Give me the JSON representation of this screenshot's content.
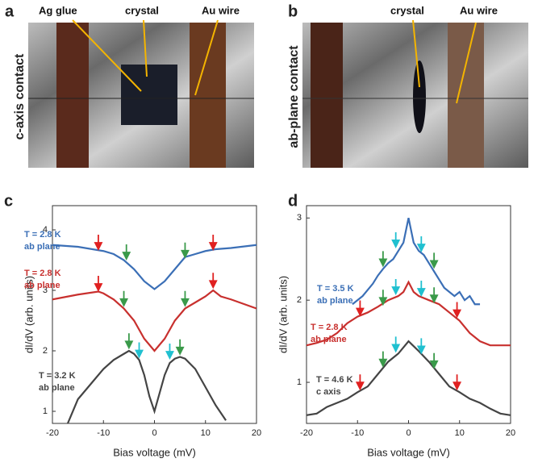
{
  "photos": [
    {
      "label": "a",
      "side": "c-axis contact",
      "callouts": [
        "Ag glue",
        "crystal",
        "Au wire"
      ]
    },
    {
      "label": "b",
      "side": "ab-plane contact",
      "callouts": [
        "crystal",
        "Au wire"
      ]
    }
  ],
  "chart_data": [
    {
      "type": "line",
      "label": "c",
      "xlabel": "Bias voltage (mV)",
      "ylabel": "dI/dV (arb. units)",
      "xlim": [
        -20,
        20
      ],
      "xticks": [
        -20,
        -10,
        0,
        10,
        20
      ],
      "ylim": [
        0.8,
        4.4
      ],
      "yticks": [
        1,
        2,
        3,
        4
      ],
      "series": [
        {
          "name": "T = 2.8 K",
          "note": "ab plane",
          "color": "#3b6fb6",
          "x": [
            -20,
            -15,
            -10,
            -8,
            -6,
            -4,
            -2,
            0,
            2,
            4,
            6,
            8,
            10,
            12,
            15,
            20
          ],
          "values": [
            3.75,
            3.72,
            3.65,
            3.6,
            3.5,
            3.35,
            3.15,
            3.02,
            3.15,
            3.35,
            3.55,
            3.6,
            3.65,
            3.68,
            3.7,
            3.75
          ]
        },
        {
          "name": "T = 2.8 K",
          "note": "ab plane",
          "color": "#c8302e",
          "x": [
            -20,
            -15,
            -11,
            -10,
            -8,
            -6,
            -4,
            -2,
            0,
            2,
            4,
            6,
            8,
            10,
            11.5,
            13,
            15,
            20
          ],
          "values": [
            2.85,
            2.93,
            2.98,
            2.95,
            2.85,
            2.7,
            2.5,
            2.2,
            2.0,
            2.2,
            2.5,
            2.7,
            2.8,
            2.9,
            3.0,
            2.9,
            2.85,
            2.7
          ]
        },
        {
          "name": "T = 3.2 K",
          "note": "ab plane",
          "color": "#444444",
          "x": [
            -17,
            -15,
            -12,
            -10,
            -8,
            -6,
            -5,
            -4,
            -3,
            -2,
            -1,
            0,
            1,
            2,
            3,
            4,
            5,
            6,
            8,
            10,
            12,
            14
          ],
          "values": [
            0.8,
            1.2,
            1.5,
            1.7,
            1.85,
            1.95,
            2.0,
            1.95,
            1.85,
            1.6,
            1.25,
            1.0,
            1.3,
            1.6,
            1.8,
            1.87,
            1.9,
            1.87,
            1.7,
            1.4,
            1.1,
            0.85
          ]
        }
      ],
      "arrows": [
        {
          "x": -11,
          "y": 3.68,
          "color": "#e02020"
        },
        {
          "x": -5.5,
          "y": 3.52,
          "color": "#3a9a4a"
        },
        {
          "x": 6,
          "y": 3.55,
          "color": "#3a9a4a"
        },
        {
          "x": 11.5,
          "y": 3.68,
          "color": "#e02020"
        },
        {
          "x": -11,
          "y": 3.0,
          "color": "#e02020"
        },
        {
          "x": -6,
          "y": 2.75,
          "color": "#3a9a4a"
        },
        {
          "x": 6,
          "y": 2.75,
          "color": "#3a9a4a"
        },
        {
          "x": 11.5,
          "y": 3.05,
          "color": "#e02020"
        },
        {
          "x": -5,
          "y": 2.05,
          "color": "#3a9a4a"
        },
        {
          "x": -3,
          "y": 1.9,
          "color": "#20c0d0"
        },
        {
          "x": 3,
          "y": 1.88,
          "color": "#20c0d0"
        },
        {
          "x": 5,
          "y": 1.95,
          "color": "#3a9a4a"
        }
      ]
    },
    {
      "type": "line",
      "label": "d",
      "xlabel": "Bias voltage (mV)",
      "ylabel": "dI/dV (arb. units)",
      "xlim": [
        -20,
        20
      ],
      "xticks": [
        -20,
        -10,
        0,
        10,
        20
      ],
      "ylim": [
        0.5,
        3.15
      ],
      "yticks": [
        1,
        2,
        3
      ],
      "series": [
        {
          "name": "T = 3.5 K",
          "note": "ab plane",
          "color": "#3b6fb6",
          "x": [
            -11,
            -9,
            -7,
            -6,
            -5,
            -4,
            -3,
            -2,
            -1,
            0,
            1,
            2,
            3,
            4,
            5,
            6,
            7,
            8,
            9,
            10,
            11,
            12,
            13,
            14
          ],
          "values": [
            1.95,
            2.05,
            2.2,
            2.3,
            2.38,
            2.45,
            2.5,
            2.6,
            2.7,
            3.0,
            2.7,
            2.6,
            2.55,
            2.45,
            2.35,
            2.25,
            2.15,
            2.1,
            2.05,
            2.1,
            2.0,
            2.05,
            1.95,
            1.95
          ]
        },
        {
          "name": "T = 2.8 K",
          "note": "ab plane",
          "color": "#c8302e",
          "x": [
            -20,
            -18,
            -16,
            -14,
            -12,
            -10,
            -8,
            -6,
            -4,
            -2,
            -1,
            0,
            1,
            2,
            4,
            6,
            8,
            10,
            12,
            14,
            16,
            18,
            20
          ],
          "values": [
            1.45,
            1.48,
            1.52,
            1.6,
            1.72,
            1.8,
            1.85,
            1.92,
            2.0,
            2.05,
            2.1,
            2.22,
            2.1,
            2.05,
            2.0,
            1.95,
            1.85,
            1.75,
            1.6,
            1.5,
            1.45,
            1.45,
            1.45
          ]
        },
        {
          "name": "T = 4.6 K",
          "note": "c axis",
          "color": "#444444",
          "x": [
            -20,
            -18,
            -16,
            -14,
            -12,
            -10,
            -8,
            -6,
            -4,
            -2,
            0,
            2,
            4,
            6,
            8,
            10,
            12,
            14,
            16,
            18,
            20
          ],
          "values": [
            0.6,
            0.62,
            0.7,
            0.75,
            0.8,
            0.88,
            0.95,
            1.1,
            1.25,
            1.35,
            1.5,
            1.38,
            1.25,
            1.1,
            0.95,
            0.88,
            0.8,
            0.75,
            0.68,
            0.62,
            0.6
          ]
        }
      ],
      "arrows": [
        {
          "x": -5,
          "y": 2.42,
          "color": "#3a9a4a"
        },
        {
          "x": -2.5,
          "y": 2.65,
          "color": "#20c0d0"
        },
        {
          "x": 2.5,
          "y": 2.6,
          "color": "#20c0d0"
        },
        {
          "x": 5,
          "y": 2.4,
          "color": "#3a9a4a"
        },
        {
          "x": -9.5,
          "y": 1.82,
          "color": "#e02020"
        },
        {
          "x": -5,
          "y": 1.95,
          "color": "#3a9a4a"
        },
        {
          "x": -2.5,
          "y": 2.08,
          "color": "#20c0d0"
        },
        {
          "x": 2.5,
          "y": 2.06,
          "color": "#20c0d0"
        },
        {
          "x": 5,
          "y": 1.98,
          "color": "#3a9a4a"
        },
        {
          "x": 9.5,
          "y": 1.8,
          "color": "#e02020"
        },
        {
          "x": -9.5,
          "y": 0.92,
          "color": "#e02020"
        },
        {
          "x": -5,
          "y": 1.2,
          "color": "#3a9a4a"
        },
        {
          "x": -2.5,
          "y": 1.38,
          "color": "#20c0d0"
        },
        {
          "x": 2.5,
          "y": 1.36,
          "color": "#20c0d0"
        },
        {
          "x": 5,
          "y": 1.18,
          "color": "#3a9a4a"
        },
        {
          "x": 9.5,
          "y": 0.92,
          "color": "#e02020"
        }
      ]
    }
  ]
}
